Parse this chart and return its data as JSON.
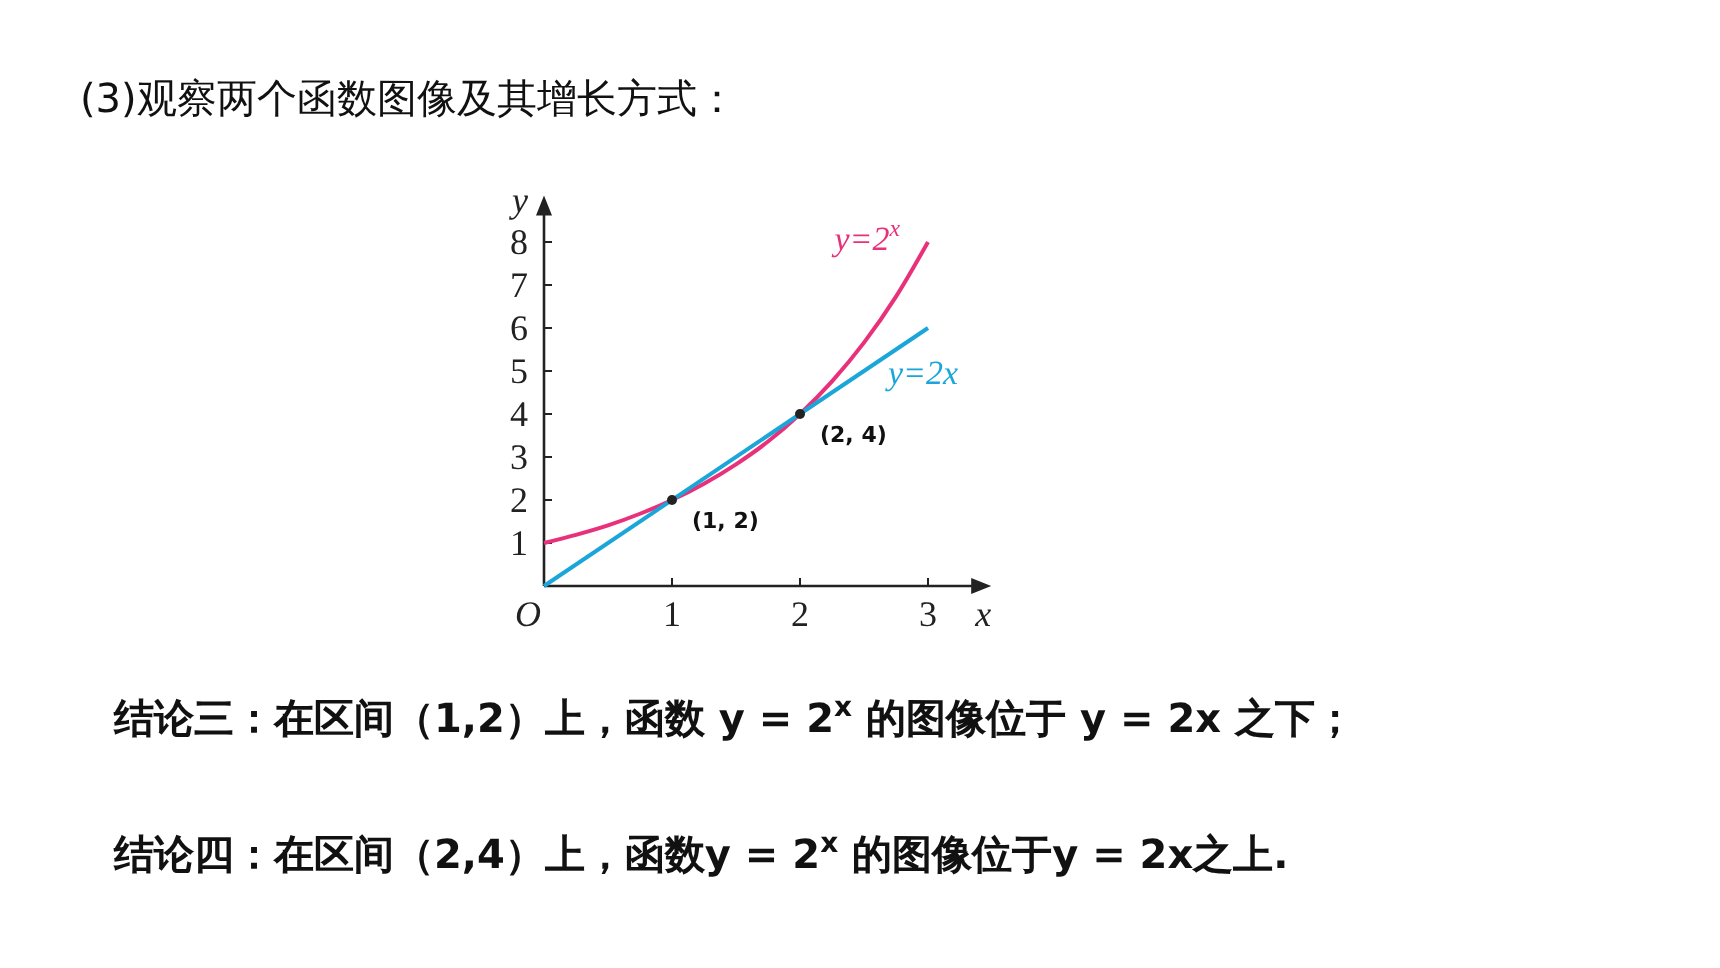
{
  "chart_data": {
    "type": "line",
    "title": "(3)观察两个函数图像及其增长方式：",
    "xlabel": "x",
    "ylabel": "y",
    "xlim": [
      0,
      3.4
    ],
    "ylim": [
      0,
      8.8
    ],
    "xticks": [
      {
        "value": 0,
        "label": "O"
      },
      1,
      2,
      3
    ],
    "yticks": [
      1,
      2,
      3,
      4,
      5,
      6,
      7,
      8
    ],
    "grid": false,
    "series": [
      {
        "name": "y=2$^{x}$",
        "color": "#e8317a",
        "x": [
          0,
          0.25,
          0.5,
          0.75,
          1,
          1.25,
          1.5,
          1.75,
          2,
          2.25,
          2.5,
          2.75,
          3
        ],
        "values": [
          1,
          1.19,
          1.41,
          1.68,
          2,
          2.38,
          2.83,
          3.36,
          4,
          4.76,
          5.66,
          6.73,
          8
        ]
      },
      {
        "name": "y=2x",
        "color": "#1ba6d9",
        "x": [
          0,
          3
        ],
        "values": [
          0,
          6
        ]
      },
      {
        "type": "scatter",
        "color": "#222222",
        "x": [
          1,
          2
        ],
        "values": [
          2,
          4
        ]
      }
    ],
    "annotations": [
      {
        "text": "(1, 2)",
        "x": 1,
        "y": 2
      },
      {
        "text": "(2, 4)",
        "x": 2,
        "y": 4
      },
      "结论三：在区间（1,2）上，函数 y = 2$^{x}$ 的图像位于 y = 2x 之下；",
      "结论四：在区间（2,4）上，函数y = 2$^{x}$ 的图像位于y = 2x之上."
    ]
  }
}
